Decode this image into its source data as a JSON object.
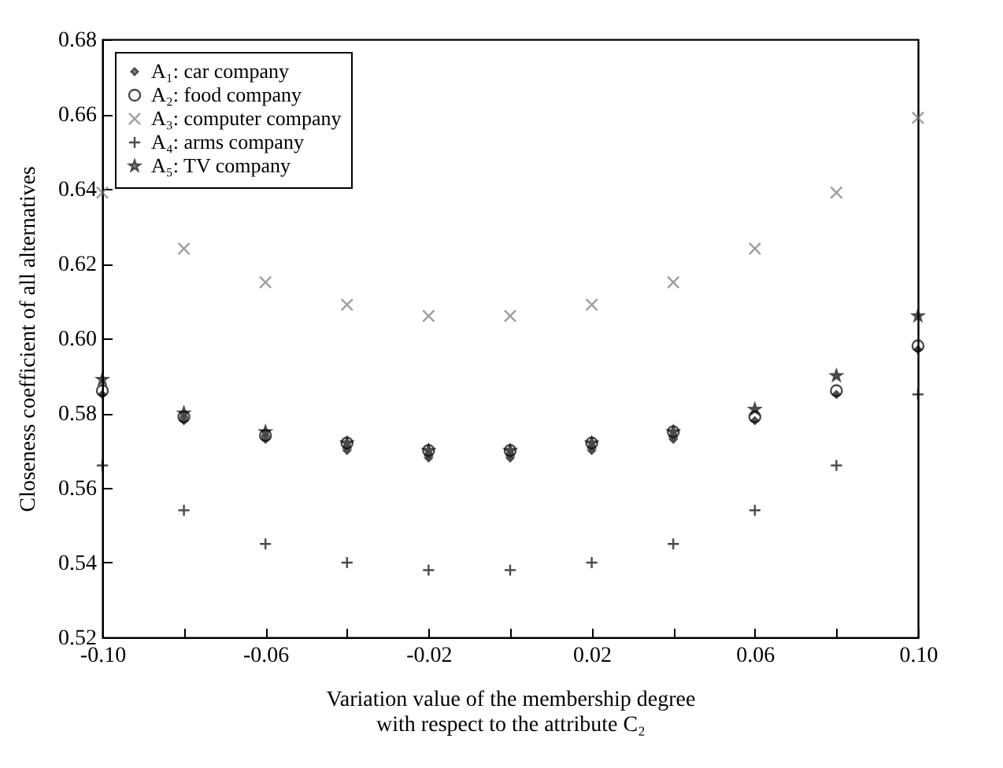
{
  "chart_data": {
    "type": "scatter",
    "ylabel": "Closeness coefficient of all alternatives",
    "xlabel": "Variation value of the membership degree\nwith respect to the attribute C₂",
    "x": [
      -0.1,
      -0.08,
      -0.06,
      -0.04,
      -0.02,
      0,
      0.02,
      0.04,
      0.06,
      0.08,
      0.1
    ],
    "series": [
      {
        "name": "A₁: car company",
        "color": "#000000",
        "marker": "diamond",
        "values": [
          0.585,
          0.578,
          0.573,
          0.57,
          0.568,
          0.568,
          0.57,
          0.573,
          0.578,
          0.585,
          0.597
        ]
      },
      {
        "name": "A₂: food company",
        "color": "#000000",
        "marker": "circle",
        "values": [
          0.586,
          0.579,
          0.574,
          0.572,
          0.57,
          0.57,
          0.572,
          0.575,
          0.579,
          0.586,
          0.598
        ]
      },
      {
        "name": "A₃: computer company",
        "color": "#777777",
        "marker": "cross",
        "values": [
          0.639,
          0.624,
          0.615,
          0.609,
          0.606,
          0.606,
          0.609,
          0.615,
          0.624,
          0.639,
          0.659
        ]
      },
      {
        "name": "A₄: arms company",
        "color": "#000000",
        "marker": "plus",
        "values": [
          0.566,
          0.554,
          0.545,
          0.54,
          0.538,
          0.538,
          0.54,
          0.545,
          0.554,
          0.566,
          0.585
        ]
      },
      {
        "name": "A₅: TV company",
        "color": "#000000",
        "marker": "star",
        "values": [
          0.589,
          0.58,
          0.575,
          0.572,
          0.57,
          0.57,
          0.572,
          0.575,
          0.581,
          0.59,
          0.606
        ]
      }
    ],
    "xlim": [
      -0.1,
      0.1
    ],
    "xticks": [
      {
        "value": -0.1,
        "label": "-0.10"
      },
      {
        "value": -0.08,
        "label": null
      },
      -0.06,
      {
        "value": -0.04,
        "label": null
      },
      -0.02,
      {
        "value": 0,
        "label": null
      },
      0.02,
      {
        "value": 0.04,
        "label": null
      },
      0.06,
      {
        "value": 0.08,
        "label": null
      },
      {
        "value": 0.1,
        "label": "0.10"
      }
    ],
    "ylim": [
      0.52,
      0.68
    ],
    "yticks": [
      0.52,
      0.54,
      0.56,
      0.58,
      {
        "value": 0.6,
        "label": "0.60"
      },
      0.62,
      0.64,
      0.66,
      0.68
    ],
    "legend": "top left",
    "grid": false
  }
}
